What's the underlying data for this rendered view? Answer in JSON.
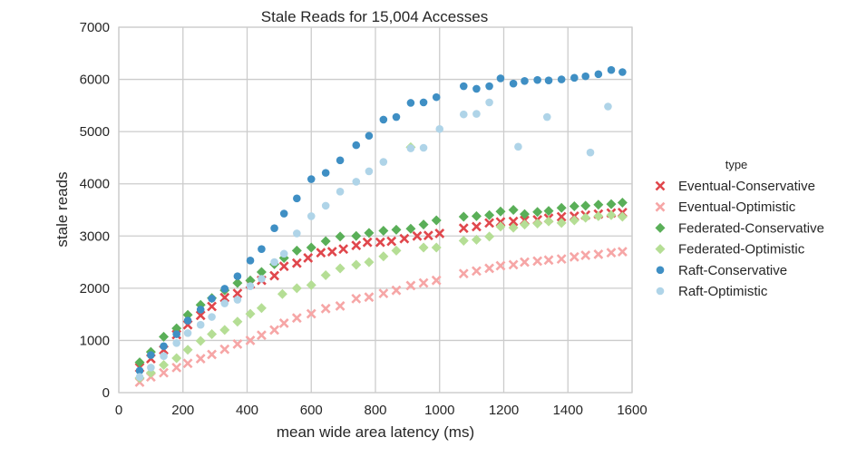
{
  "chart_data": {
    "type": "scatter",
    "title": "Stale Reads for 15,004 Accesses",
    "xlabel": "mean wide area latency (ms)",
    "ylabel": "stale reads",
    "xlim": [
      0,
      1600
    ],
    "ylim": [
      0,
      7000
    ],
    "xticks": [
      0,
      200,
      400,
      600,
      800,
      1000,
      1200,
      1400,
      1600
    ],
    "yticks": [
      0,
      1000,
      2000,
      3000,
      4000,
      5000,
      6000,
      7000
    ],
    "grid": true,
    "legend": {
      "title": "type",
      "position": "right"
    },
    "series": [
      {
        "name": "Eventual-Conservative",
        "marker": "x",
        "color": "#e0474c",
        "x": [
          65,
          100,
          140,
          180,
          215,
          255,
          290,
          330,
          370,
          410,
          445,
          485,
          515,
          555,
          590,
          630,
          665,
          700,
          740,
          775,
          815,
          850,
          890,
          930,
          965,
          1000,
          1075,
          1115,
          1155,
          1190,
          1230,
          1265,
          1305,
          1340,
          1380,
          1420,
          1455,
          1495,
          1535,
          1570
        ],
        "y": [
          480,
          650,
          820,
          1110,
          1300,
          1480,
          1650,
          1820,
          1900,
          2080,
          2150,
          2240,
          2420,
          2480,
          2580,
          2680,
          2700,
          2750,
          2820,
          2880,
          2880,
          2900,
          2950,
          3000,
          3010,
          3050,
          3150,
          3180,
          3250,
          3270,
          3280,
          3300,
          3310,
          3340,
          3370,
          3380,
          3400,
          3420,
          3440,
          3450
        ]
      },
      {
        "name": "Eventual-Optimistic",
        "marker": "x",
        "color": "#f6a6a6",
        "x": [
          65,
          100,
          140,
          180,
          215,
          255,
          290,
          330,
          370,
          410,
          445,
          485,
          515,
          555,
          600,
          645,
          690,
          740,
          780,
          825,
          865,
          910,
          950,
          990,
          1075,
          1115,
          1155,
          1190,
          1230,
          1265,
          1305,
          1340,
          1380,
          1420,
          1455,
          1495,
          1535,
          1570
        ],
        "y": [
          200,
          300,
          380,
          480,
          560,
          650,
          730,
          830,
          930,
          1000,
          1100,
          1200,
          1330,
          1430,
          1510,
          1610,
          1660,
          1800,
          1830,
          1900,
          1960,
          2050,
          2100,
          2150,
          2280,
          2330,
          2380,
          2430,
          2450,
          2500,
          2520,
          2540,
          2560,
          2600,
          2630,
          2650,
          2680,
          2700
        ]
      },
      {
        "name": "Federated-Conservative",
        "marker": "D",
        "color": "#5aaf58",
        "x": [
          65,
          100,
          140,
          180,
          215,
          255,
          290,
          330,
          370,
          410,
          445,
          485,
          515,
          555,
          600,
          645,
          690,
          740,
          780,
          825,
          865,
          910,
          950,
          990,
          1075,
          1115,
          1155,
          1190,
          1230,
          1265,
          1305,
          1340,
          1380,
          1420,
          1455,
          1495,
          1535,
          1570
        ],
        "y": [
          580,
          780,
          1070,
          1230,
          1490,
          1680,
          1810,
          1960,
          2100,
          2150,
          2310,
          2460,
          2580,
          2720,
          2780,
          2900,
          2990,
          3000,
          3060,
          3100,
          3120,
          3140,
          3220,
          3300,
          3370,
          3380,
          3400,
          3470,
          3500,
          3420,
          3460,
          3480,
          3540,
          3570,
          3580,
          3600,
          3610,
          3640
        ]
      },
      {
        "name": "Federated-Optimistic",
        "marker": "D",
        "color": "#b5de95",
        "x": [
          65,
          100,
          140,
          180,
          215,
          255,
          290,
          330,
          370,
          410,
          445,
          510,
          555,
          600,
          645,
          690,
          740,
          780,
          825,
          865,
          910,
          950,
          990,
          1075,
          1115,
          1155,
          1190,
          1230,
          1265,
          1305,
          1340,
          1380,
          1420,
          1455,
          1495,
          1535,
          1570
        ],
        "y": [
          280,
          380,
          530,
          660,
          820,
          990,
          1120,
          1200,
          1360,
          1510,
          1620,
          1890,
          2000,
          2060,
          2250,
          2380,
          2450,
          2500,
          2610,
          2720,
          4700,
          2780,
          2780,
          2910,
          2930,
          2990,
          3180,
          3160,
          3220,
          3240,
          3280,
          3250,
          3300,
          3350,
          3380,
          3400,
          3370
        ]
      },
      {
        "name": "Raft-Conservative",
        "marker": "o",
        "color": "#3f8fc4",
        "x": [
          65,
          100,
          140,
          180,
          215,
          255,
          290,
          330,
          370,
          410,
          445,
          485,
          515,
          555,
          600,
          645,
          690,
          740,
          780,
          825,
          865,
          910,
          950,
          990,
          1075,
          1115,
          1155,
          1190,
          1230,
          1265,
          1305,
          1340,
          1380,
          1420,
          1455,
          1495,
          1535,
          1570
        ],
        "y": [
          420,
          720,
          890,
          1120,
          1380,
          1590,
          1800,
          1990,
          2230,
          2530,
          2750,
          3150,
          3430,
          3720,
          4090,
          4210,
          4450,
          4740,
          4920,
          5230,
          5280,
          5550,
          5560,
          5660,
          5870,
          5820,
          5870,
          6020,
          5920,
          5970,
          5990,
          5980,
          6000,
          6030,
          6060,
          6100,
          6180,
          6140
        ]
      },
      {
        "name": "Raft-Optimistic",
        "marker": "o",
        "color": "#afd4e8",
        "x": [
          65,
          100,
          140,
          180,
          215,
          255,
          290,
          330,
          370,
          410,
          445,
          485,
          515,
          555,
          600,
          645,
          690,
          740,
          780,
          825,
          910,
          950,
          1000,
          1075,
          1115,
          1155,
          1245,
          1335,
          1470,
          1525
        ],
        "y": [
          300,
          480,
          700,
          950,
          1140,
          1300,
          1450,
          1710,
          1780,
          2040,
          2180,
          2500,
          2660,
          3050,
          3380,
          3580,
          3850,
          4040,
          4240,
          4420,
          4680,
          4690,
          5050,
          5330,
          5340,
          5560,
          4710,
          5280,
          4600,
          5480
        ]
      }
    ]
  }
}
